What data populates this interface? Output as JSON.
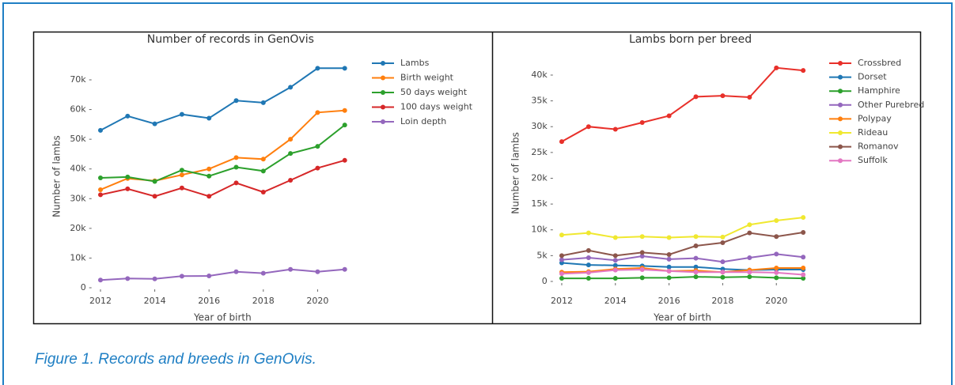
{
  "caption": "Figure 1. Records and breeds in GenOvis.",
  "chart_data": [
    {
      "type": "line",
      "title": "Number of records in GenOvis",
      "x_label": "Year of birth",
      "y_label": "Number of lambs",
      "x": [
        2012,
        2013,
        2014,
        2015,
        2016,
        2017,
        2018,
        2019,
        2020,
        2021
      ],
      "xlim": [
        2011.7,
        2021.3
      ],
      "xticks": [
        2012,
        2014,
        2016,
        2018,
        2020
      ],
      "ylim": [
        -2000,
        77000
      ],
      "yticks": [
        0,
        {
          "value": 10000,
          "label": "10k"
        },
        {
          "value": 20000,
          "label": "20k"
        },
        {
          "value": 30000,
          "label": "30k"
        },
        {
          "value": 40000,
          "label": "40k"
        },
        {
          "value": 50000,
          "label": "50k"
        },
        {
          "value": 60000,
          "label": "60k"
        },
        {
          "value": 70000,
          "label": "70k"
        }
      ],
      "grid": false,
      "legend": "top-right",
      "series": [
        {
          "name": "Lambs",
          "color": "#1f77b4",
          "values": [
            53000,
            57800,
            55200,
            58400,
            57100,
            63000,
            62300,
            67500,
            73900,
            73900
          ]
        },
        {
          "name": "Birth weight",
          "color": "#ff7f0e",
          "values": [
            33000,
            36800,
            36000,
            38000,
            40000,
            43800,
            43300,
            50000,
            59000,
            59700
          ]
        },
        {
          "name": "50 days weight",
          "color": "#2ca02c",
          "values": [
            37000,
            37300,
            35800,
            39600,
            37600,
            40600,
            39300,
            45200,
            47600,
            54800
          ]
        },
        {
          "name": "100 days weight",
          "color": "#d62728",
          "values": [
            31300,
            33300,
            30800,
            33600,
            30800,
            35300,
            32200,
            36200,
            40300,
            42900
          ]
        },
        {
          "name": "Loin depth",
          "color": "#9467bd",
          "values": [
            2600,
            3100,
            3000,
            3900,
            4000,
            5400,
            4900,
            6200,
            5400,
            6200
          ]
        }
      ]
    },
    {
      "type": "line",
      "title": "Lambs born per breed",
      "x_label": "Year of birth",
      "y_label": "Number of lambs",
      "x": [
        2012,
        2013,
        2014,
        2015,
        2016,
        2017,
        2018,
        2019,
        2020,
        2021
      ],
      "xlim": [
        2011.7,
        2021.3
      ],
      "xticks": [
        2012,
        2014,
        2016,
        2018,
        2020
      ],
      "ylim": [
        -1000,
        43000
      ],
      "yticks": [
        0,
        {
          "value": 5000,
          "label": "5k"
        },
        {
          "value": 10000,
          "label": "10k"
        },
        {
          "value": 15000,
          "label": "15k"
        },
        {
          "value": 20000,
          "label": "20k"
        },
        {
          "value": 25000,
          "label": "25k"
        },
        {
          "value": 30000,
          "label": "30k"
        },
        {
          "value": 35000,
          "label": "35k"
        },
        {
          "value": 40000,
          "label": "40k"
        }
      ],
      "grid": false,
      "legend": "top-right",
      "series": [
        {
          "name": "Crossbred",
          "color": "#e8302a",
          "values": [
            27100,
            30000,
            29500,
            30800,
            32100,
            35800,
            36000,
            35700,
            41400,
            40900
          ]
        },
        {
          "name": "Dorset",
          "color": "#1f77b4",
          "values": [
            3600,
            3200,
            3100,
            3000,
            2800,
            2800,
            2400,
            2200,
            2300,
            2300
          ]
        },
        {
          "name": "Hamphire",
          "color": "#2ca02c",
          "values": [
            600,
            600,
            600,
            700,
            700,
            900,
            800,
            900,
            700,
            600
          ]
        },
        {
          "name": "Other Purebred",
          "color": "#9467bd",
          "values": [
            4200,
            4600,
            4100,
            4900,
            4300,
            4500,
            3800,
            4600,
            5300,
            4700
          ]
        },
        {
          "name": "Polypay",
          "color": "#ff7f0e",
          "values": [
            1800,
            1900,
            2400,
            2600,
            2000,
            2100,
            1800,
            2200,
            2600,
            2600
          ]
        },
        {
          "name": "Rideau",
          "color": "#f0e830",
          "values": [
            9000,
            9400,
            8500,
            8700,
            8500,
            8700,
            8600,
            11000,
            11800,
            12400
          ]
        },
        {
          "name": "Romanov",
          "color": "#8c564b",
          "values": [
            5000,
            6000,
            5000,
            5600,
            5200,
            6900,
            7500,
            9400,
            8700,
            9500
          ]
        },
        {
          "name": "Suffolk",
          "color": "#e377c2",
          "values": [
            1500,
            1700,
            2200,
            2300,
            2000,
            1800,
            1800,
            1800,
            1700,
            1300
          ]
        }
      ]
    }
  ]
}
